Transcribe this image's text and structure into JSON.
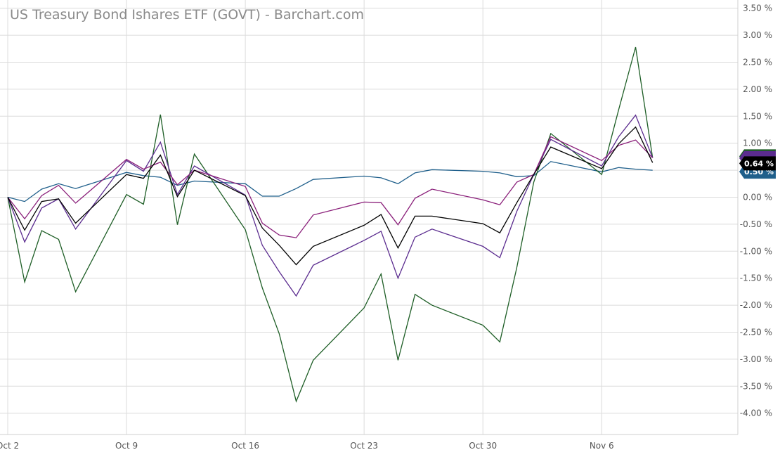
{
  "chart_data": {
    "type": "line",
    "title": "US Treasury Bond Ishares ETF (GOVT) - Barchart.com",
    "xlabel": "",
    "ylabel": "",
    "x_tick_labels": [
      "Oct 2",
      "Oct 9",
      "Oct 16",
      "Oct 23",
      "Oct 30",
      "Nov 6"
    ],
    "y_ticks": [
      3.5,
      3.0,
      2.5,
      2.0,
      1.5,
      1.0,
      0.5,
      0.0,
      -0.5,
      -1.0,
      -1.5,
      -2.0,
      -2.5,
      -3.0,
      -3.5,
      -4.0
    ],
    "y_tick_labels": [
      "3.50 %",
      "3.00 %",
      "2.50 %",
      "2.00 %",
      "1.50 %",
      "1.00 %",
      "0.50 %",
      "0.00 %",
      "-0.50 %",
      "-1.00 %",
      "-1.50 %",
      "-2.00 %",
      "-2.50 %",
      "-3.00 %",
      "-3.50 %",
      "-4.00 %"
    ],
    "ylim": [
      -4.2,
      3.6
    ],
    "grid": true,
    "x": [
      "2023-10-02",
      "2023-10-03",
      "2023-10-04",
      "2023-10-05",
      "2023-10-06",
      "2023-10-09",
      "2023-10-10",
      "2023-10-11",
      "2023-10-12",
      "2023-10-13",
      "2023-10-16",
      "2023-10-17",
      "2023-10-18",
      "2023-10-19",
      "2023-10-20",
      "2023-10-23",
      "2023-10-24",
      "2023-10-25",
      "2023-10-26",
      "2023-10-27",
      "2023-10-30",
      "2023-10-31",
      "2023-11-01",
      "2023-11-02",
      "2023-11-03",
      "2023-11-06",
      "2023-11-07",
      "2023-11-08",
      "2023-11-09"
    ],
    "series": [
      {
        "color": "#1f5f8b",
        "values": [
          0.0,
          -0.08,
          0.15,
          0.25,
          0.16,
          0.46,
          0.4,
          0.37,
          0.22,
          0.3,
          0.25,
          0.02,
          0.02,
          0.16,
          0.33,
          0.39,
          0.36,
          0.25,
          0.45,
          0.51,
          0.48,
          0.45,
          0.38,
          0.4,
          0.66,
          0.47,
          0.55,
          0.52,
          0.5
        ]
      },
      {
        "color": "#1e5e26",
        "values": [
          0.0,
          -1.57,
          -0.62,
          -0.78,
          -1.75,
          0.05,
          -0.13,
          1.53,
          -0.51,
          0.8,
          -0.6,
          -1.68,
          -2.53,
          -3.78,
          -3.02,
          -2.05,
          -1.42,
          -3.02,
          -1.8,
          -2.0,
          -2.37,
          -2.68,
          -1.3,
          0.28,
          1.18,
          0.42,
          1.62,
          2.78,
          0.73
        ]
      },
      {
        "color": "#000000",
        "values": [
          0.0,
          -0.61,
          -0.08,
          -0.03,
          -0.48,
          0.42,
          0.35,
          0.78,
          0.01,
          0.5,
          0.03,
          -0.57,
          -0.89,
          -1.25,
          -0.91,
          -0.52,
          -0.32,
          -0.94,
          -0.35,
          -0.35,
          -0.49,
          -0.66,
          -0.1,
          0.42,
          0.93,
          0.53,
          0.99,
          1.3,
          0.64
        ]
      },
      {
        "color": "#5b2c8f",
        "values": [
          0.0,
          -0.83,
          -0.2,
          -0.03,
          -0.59,
          0.68,
          0.48,
          1.02,
          0.05,
          0.58,
          0.04,
          -0.89,
          -1.38,
          -1.83,
          -1.26,
          -0.8,
          -0.63,
          -1.5,
          -0.74,
          -0.59,
          -0.91,
          -1.12,
          -0.26,
          0.42,
          1.07,
          0.58,
          1.12,
          1.52,
          0.73
        ]
      },
      {
        "color": "#8a1f7a",
        "values": [
          0.0,
          -0.4,
          0.03,
          0.22,
          -0.11,
          0.7,
          0.52,
          0.65,
          0.23,
          0.5,
          0.2,
          -0.48,
          -0.7,
          -0.75,
          -0.33,
          -0.09,
          -0.1,
          -0.51,
          -0.02,
          0.15,
          -0.05,
          -0.14,
          0.28,
          0.42,
          1.12,
          0.68,
          0.96,
          1.06,
          0.73
        ]
      }
    ],
    "last_value_labels": [
      {
        "text": "0.64 %",
        "value": 0.64,
        "background": "#000000"
      },
      {
        "text": "0.50 %",
        "value": 0.5,
        "background": "#1f5f8b"
      }
    ]
  }
}
